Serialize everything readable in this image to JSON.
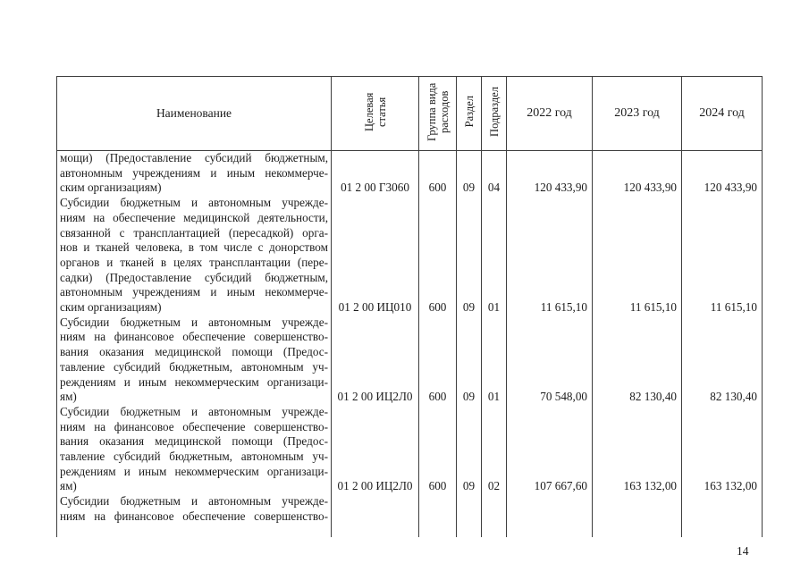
{
  "colors": {
    "ink": "#1c1c1c",
    "table_border": "#3d3d3d",
    "paper": "#ffffff"
  },
  "page": {
    "number": "14"
  },
  "table": {
    "header": {
      "name": "Наименование",
      "target_article": "Целевая статья",
      "expense_group": "Группа вида расходов",
      "section": "Раздел",
      "subsection": "Подраздел",
      "year_2022": "2022 год",
      "year_2023": "2023 год",
      "year_2024": "2024 год"
    },
    "rows": [
      {
        "name_lines": [
          "мощи) (Предоставление субсидий бюджетным,",
          "автономным учреждениям и иным некоммерче-",
          "ским организациям)"
        ],
        "target_article": "01 2 00 Г3060",
        "expense_group": "600",
        "section": "09",
        "subsection": "04",
        "y2022": "120 433,90",
        "y2023": "120 433,90",
        "y2024": "120 433,90"
      },
      {
        "name_lines": [
          "Субсидии бюджетным и автономным учрежде-",
          "ниям на обеспечение медицинской деятельности,",
          "связанной с трансплантацией (пересадкой) орга-",
          "нов и тканей человека, в том числе с донорством",
          "органов и тканей в целях трансплантации (пере-",
          "садки) (Предоставление субсидий бюджетным,",
          "автономным учреждениям и иным некоммерче-",
          "ским организациям)"
        ],
        "target_article": "01 2 00 ИЦ010",
        "expense_group": "600",
        "section": "09",
        "subsection": "01",
        "y2022": "11 615,10",
        "y2023": "11 615,10",
        "y2024": "11 615,10"
      },
      {
        "name_lines": [
          "Субсидии бюджетным и автономным учрежде-",
          "ниям на финансовое обеспечение совершенство-",
          "вания оказания медицинской помощи (Предос-",
          "тавление субсидий бюджетным, автономным уч-",
          "реждениям и иным некоммерческим организаци-",
          "ям)"
        ],
        "target_article": "01 2 00 ИЦ2Л0",
        "expense_group": "600",
        "section": "09",
        "subsection": "01",
        "y2022": "70 548,00",
        "y2023": "82 130,40",
        "y2024": "82 130,40"
      },
      {
        "name_lines": [
          "Субсидии бюджетным и автономным учрежде-",
          "ниям на финансовое обеспечение совершенство-",
          "вания оказания медицинской помощи (Предос-",
          "тавление субсидий бюджетным, автономным уч-",
          "реждениям и иным некоммерческим организаци-",
          "ям)"
        ],
        "target_article": "01 2 00 ИЦ2Л0",
        "expense_group": "600",
        "section": "09",
        "subsection": "02",
        "y2022": "107 667,60",
        "y2023": "163 132,00",
        "y2024": "163 132,00"
      },
      {
        "name_lines": [
          "Субсидии бюджетным и автономным учрежде-",
          "ниям на финансовое обеспечение совершенство-"
        ],
        "truncated": true,
        "target_article": "",
        "expense_group": "",
        "section": "",
        "subsection": "",
        "y2022": "",
        "y2023": "",
        "y2024": ""
      }
    ]
  }
}
